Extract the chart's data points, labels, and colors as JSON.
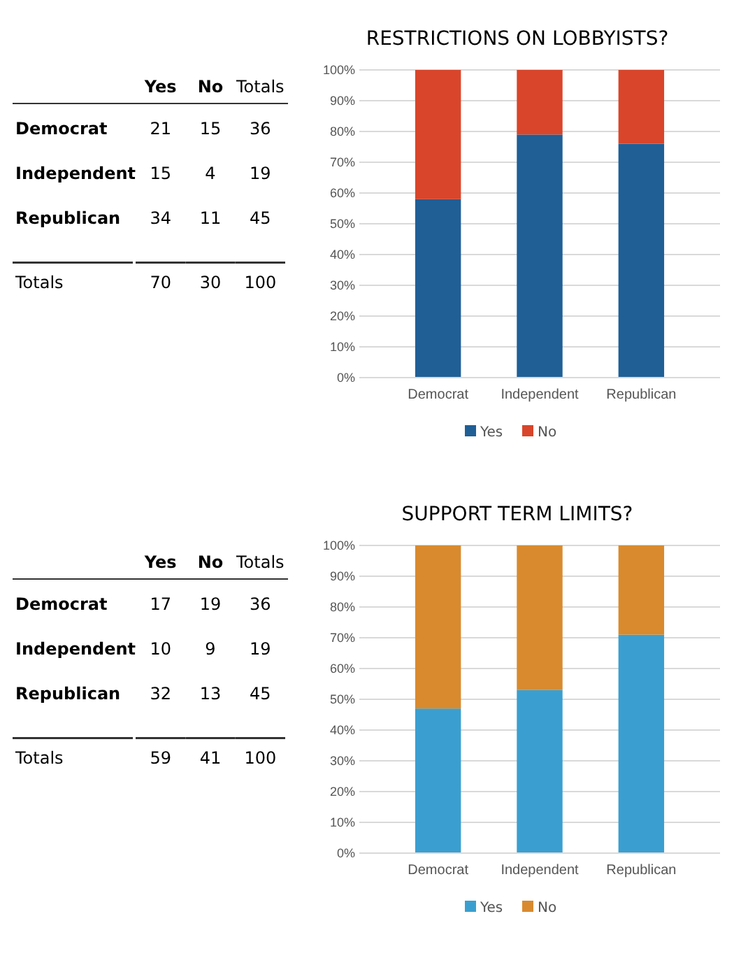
{
  "chart_data": [
    {
      "type": "heatmap",
      "categories": [
        "Yes",
        "No",
        "Totals"
      ],
      "y_categories": [
        "Democrat",
        "Independent",
        "Republican",
        "Totals"
      ],
      "cells": [
        [
          21,
          15,
          36
        ],
        [
          15,
          4,
          19
        ],
        [
          34,
          11,
          45
        ],
        [
          70,
          30,
          100
        ]
      ],
      "data_labels": true
    },
    {
      "type": "bar",
      "title": "RESTRICTIONS ON LOBBYISTS?",
      "stacked": true,
      "categories": [
        "Democrat",
        "Independent",
        "Republican"
      ],
      "series": [
        {
          "name": "Yes",
          "color": "#1f5f96",
          "values": [
            58,
            79,
            76
          ]
        },
        {
          "name": "No",
          "color": "#d9452a",
          "values": [
            42,
            21,
            24
          ]
        }
      ],
      "ylim": [
        0,
        100
      ],
      "yticks": [
        {
          "value": 0,
          "label": "0%"
        },
        {
          "value": 10,
          "label": "10%"
        },
        {
          "value": 20,
          "label": "20%"
        },
        {
          "value": 30,
          "label": "30%"
        },
        {
          "value": 40,
          "label": "40%"
        },
        {
          "value": 50,
          "label": "50%"
        },
        {
          "value": 60,
          "label": "60%"
        },
        {
          "value": 70,
          "label": "70%"
        },
        {
          "value": 80,
          "label": "80%"
        },
        {
          "value": 90,
          "label": "90%"
        },
        {
          "value": 100,
          "label": "100%"
        }
      ],
      "grid": "y",
      "legend": "bottom"
    },
    {
      "type": "heatmap",
      "categories": [
        "Yes",
        "No",
        "Totals"
      ],
      "y_categories": [
        "Democrat",
        "Independent",
        "Republican",
        "Totals"
      ],
      "cells": [
        [
          17,
          19,
          36
        ],
        [
          10,
          9,
          19
        ],
        [
          32,
          13,
          45
        ],
        [
          59,
          41,
          100
        ]
      ],
      "data_labels": true
    },
    {
      "type": "bar",
      "title": "SUPPORT TERM LIMITS?",
      "stacked": true,
      "categories": [
        "Democrat",
        "Independent",
        "Republican"
      ],
      "series": [
        {
          "name": "Yes",
          "color": "#3a9fd0",
          "values": [
            47,
            53,
            71
          ]
        },
        {
          "name": "No",
          "color": "#d98a2e",
          "values": [
            53,
            47,
            29
          ]
        }
      ],
      "ylim": [
        0,
        100
      ],
      "yticks": [
        {
          "value": 0,
          "label": "0%"
        },
        {
          "value": 10,
          "label": "10%"
        },
        {
          "value": 20,
          "label": "20%"
        },
        {
          "value": 30,
          "label": "30%"
        },
        {
          "value": 40,
          "label": "40%"
        },
        {
          "value": 50,
          "label": "50%"
        },
        {
          "value": 60,
          "label": "60%"
        },
        {
          "value": 70,
          "label": "70%"
        },
        {
          "value": 80,
          "label": "80%"
        },
        {
          "value": 90,
          "label": "90%"
        },
        {
          "value": 100,
          "label": "100%"
        }
      ],
      "grid": "y",
      "legend": "bottom"
    }
  ]
}
